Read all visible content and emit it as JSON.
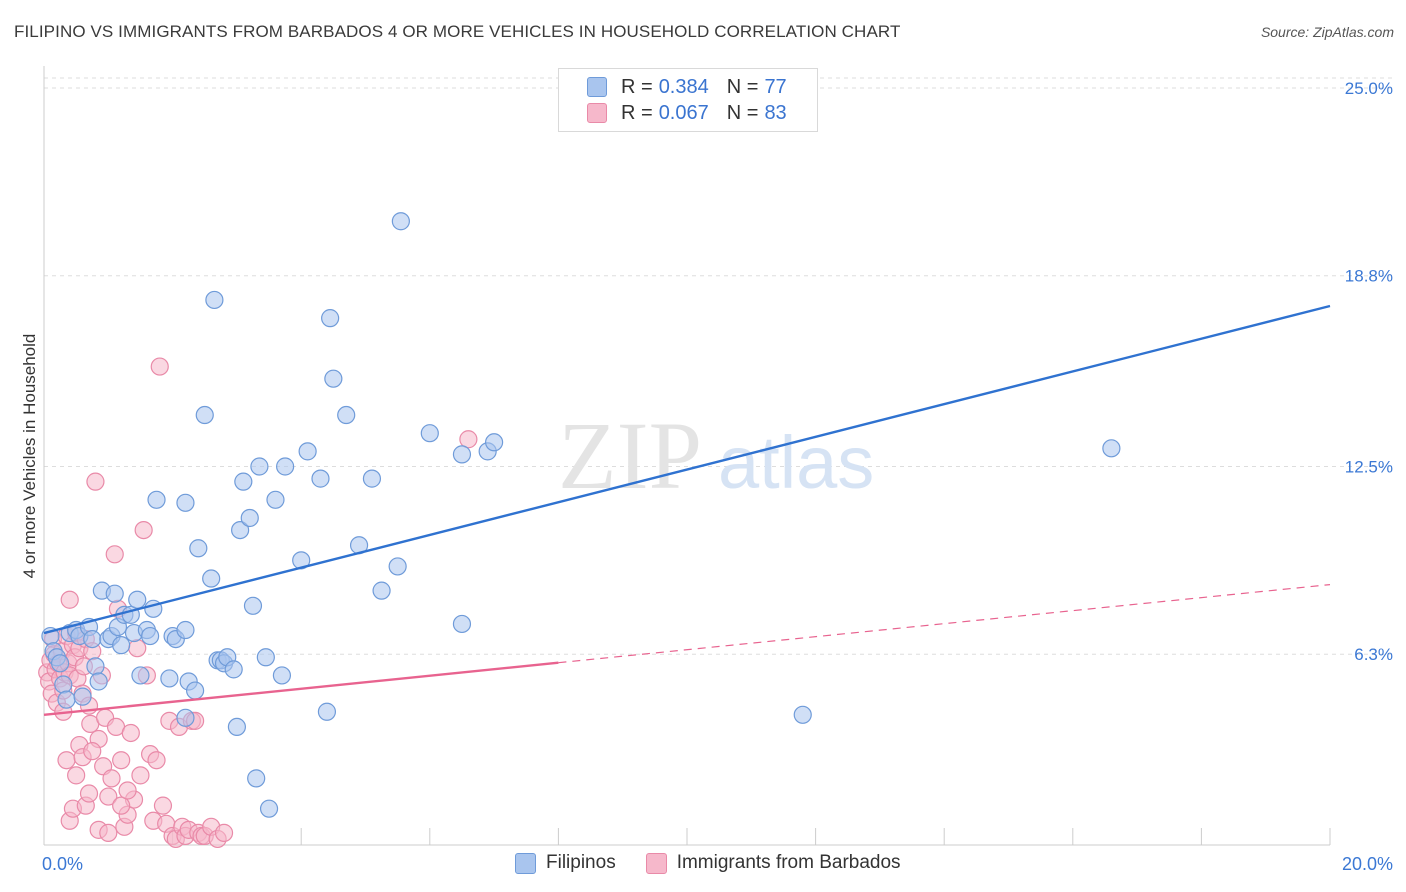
{
  "header": {
    "title": "FILIPINO VS IMMIGRANTS FROM BARBADOS 4 OR MORE VEHICLES IN HOUSEHOLD CORRELATION CHART",
    "source": "Source: ZipAtlas.com"
  },
  "legend": {
    "rows": [
      {
        "r_label": "R =",
        "r_value": "0.384",
        "n_label": "N =",
        "n_value": "77"
      },
      {
        "r_label": "R =",
        "r_value": "0.067",
        "n_label": "N =",
        "n_value": "83"
      }
    ]
  },
  "watermark": {
    "zip": "ZIP",
    "atlas": "atlas"
  },
  "colors": {
    "blue_fill": "#a9c5ee",
    "blue_stroke": "#6f9bd9",
    "blue_line": "#2f72d0",
    "pink_fill": "#f6b8cb",
    "pink_stroke": "#e98aa8",
    "pink_line": "#e8638f",
    "axis_text": "#3b78d4",
    "grid": "#dddddd"
  },
  "chart_data": {
    "type": "scatter",
    "title": "FILIPINO VS IMMIGRANTS FROM BARBADOS 4 OR MORE VEHICLES IN HOUSEHOLD CORRELATION CHART",
    "xlabel": "",
    "ylabel": "4 or more Vehicles in Household",
    "xlim": [
      0,
      20
    ],
    "ylim": [
      0,
      25.0
    ],
    "x_tick_labels": [
      "0.0%",
      "20.0%"
    ],
    "y_ticks": [
      6.3,
      12.5,
      18.8,
      25.0
    ],
    "y_tick_labels": [
      "6.3%",
      "12.5%",
      "18.8%",
      "25.0%"
    ],
    "grid": true,
    "series": [
      {
        "name": "Filipinos",
        "r": 0.384,
        "n": 77,
        "trend": {
          "x0": 0,
          "y0": 7.0,
          "x1": 20,
          "y1": 17.8,
          "dashed_from": null
        },
        "points": [
          [
            0.1,
            6.9
          ],
          [
            0.15,
            6.4
          ],
          [
            0.2,
            6.2
          ],
          [
            0.25,
            6.0
          ],
          [
            0.3,
            5.3
          ],
          [
            0.35,
            4.8
          ],
          [
            0.4,
            7.0
          ],
          [
            0.5,
            7.1
          ],
          [
            0.55,
            6.9
          ],
          [
            0.6,
            4.9
          ],
          [
            0.7,
            7.2
          ],
          [
            0.75,
            6.8
          ],
          [
            0.8,
            5.9
          ],
          [
            0.85,
            5.4
          ],
          [
            0.9,
            8.4
          ],
          [
            1.0,
            6.8
          ],
          [
            1.05,
            6.9
          ],
          [
            1.1,
            8.3
          ],
          [
            1.15,
            7.2
          ],
          [
            1.2,
            6.6
          ],
          [
            1.25,
            7.6
          ],
          [
            1.35,
            7.6
          ],
          [
            1.4,
            7.0
          ],
          [
            1.45,
            8.1
          ],
          [
            1.5,
            5.6
          ],
          [
            1.6,
            7.1
          ],
          [
            1.65,
            6.9
          ],
          [
            1.7,
            7.8
          ],
          [
            1.75,
            11.4
          ],
          [
            1.95,
            5.5
          ],
          [
            2.0,
            6.9
          ],
          [
            2.05,
            6.8
          ],
          [
            2.2,
            7.1
          ],
          [
            2.2,
            11.3
          ],
          [
            2.25,
            5.4
          ],
          [
            2.2,
            4.2
          ],
          [
            2.35,
            5.1
          ],
          [
            2.4,
            9.8
          ],
          [
            2.5,
            14.2
          ],
          [
            2.6,
            8.8
          ],
          [
            2.65,
            18.0
          ],
          [
            2.7,
            6.1
          ],
          [
            2.75,
            6.1
          ],
          [
            2.8,
            6.0
          ],
          [
            2.85,
            6.2
          ],
          [
            2.95,
            5.8
          ],
          [
            3.0,
            3.9
          ],
          [
            3.05,
            10.4
          ],
          [
            3.1,
            12.0
          ],
          [
            3.2,
            10.8
          ],
          [
            3.25,
            7.9
          ],
          [
            3.3,
            2.2
          ],
          [
            3.35,
            12.5
          ],
          [
            3.45,
            6.2
          ],
          [
            3.5,
            1.2
          ],
          [
            3.6,
            11.4
          ],
          [
            3.7,
            5.6
          ],
          [
            3.75,
            12.5
          ],
          [
            4.0,
            9.4
          ],
          [
            4.1,
            13.0
          ],
          [
            4.3,
            12.1
          ],
          [
            4.4,
            4.4
          ],
          [
            4.45,
            17.4
          ],
          [
            4.5,
            15.4
          ],
          [
            4.7,
            14.2
          ],
          [
            4.9,
            9.9
          ],
          [
            5.1,
            12.1
          ],
          [
            5.25,
            8.4
          ],
          [
            5.5,
            9.2
          ],
          [
            5.55,
            20.6
          ],
          [
            6.0,
            13.6
          ],
          [
            6.5,
            7.3
          ],
          [
            6.5,
            12.9
          ],
          [
            6.9,
            13.0
          ],
          [
            7.0,
            13.3
          ],
          [
            11.8,
            4.3
          ],
          [
            16.6,
            13.1
          ]
        ]
      },
      {
        "name": "Immigrants from Barbados",
        "r": 0.067,
        "n": 83,
        "trend": {
          "x0": 0,
          "y0": 4.3,
          "x1": 20,
          "y1": 8.6,
          "dashed_from": 8.0
        },
        "points": [
          [
            0.05,
            5.7
          ],
          [
            0.08,
            5.4
          ],
          [
            0.1,
            6.1
          ],
          [
            0.12,
            5.0
          ],
          [
            0.14,
            6.8
          ],
          [
            0.16,
            6.3
          ],
          [
            0.18,
            5.8
          ],
          [
            0.2,
            4.7
          ],
          [
            0.22,
            6.0
          ],
          [
            0.25,
            5.5
          ],
          [
            0.28,
            6.4
          ],
          [
            0.3,
            5.1
          ],
          [
            0.32,
            5.7
          ],
          [
            0.35,
            6.9
          ],
          [
            0.38,
            6.0
          ],
          [
            0.4,
            5.6
          ],
          [
            0.45,
            6.6
          ],
          [
            0.48,
            6.2
          ],
          [
            0.5,
            7.0
          ],
          [
            0.52,
            5.5
          ],
          [
            0.55,
            6.5
          ],
          [
            0.6,
            5.0
          ],
          [
            0.62,
            5.9
          ],
          [
            0.65,
            6.8
          ],
          [
            0.7,
            4.6
          ],
          [
            0.72,
            4.0
          ],
          [
            0.75,
            6.4
          ],
          [
            0.8,
            12.0
          ],
          [
            0.85,
            3.5
          ],
          [
            0.9,
            5.6
          ],
          [
            0.92,
            2.6
          ],
          [
            0.95,
            4.2
          ],
          [
            1.0,
            1.6
          ],
          [
            1.05,
            2.2
          ],
          [
            1.1,
            9.6
          ],
          [
            1.12,
            3.9
          ],
          [
            1.15,
            7.8
          ],
          [
            1.2,
            2.8
          ],
          [
            1.25,
            0.6
          ],
          [
            1.3,
            1.0
          ],
          [
            1.35,
            3.7
          ],
          [
            1.4,
            1.5
          ],
          [
            1.45,
            6.5
          ],
          [
            1.5,
            2.3
          ],
          [
            1.55,
            10.4
          ],
          [
            1.6,
            5.6
          ],
          [
            1.65,
            3.0
          ],
          [
            1.7,
            0.8
          ],
          [
            1.75,
            2.8
          ],
          [
            1.8,
            15.8
          ],
          [
            1.85,
            1.3
          ],
          [
            1.9,
            0.7
          ],
          [
            1.95,
            4.1
          ],
          [
            2.0,
            0.3
          ],
          [
            2.05,
            0.2
          ],
          [
            2.1,
            3.9
          ],
          [
            2.15,
            0.6
          ],
          [
            2.2,
            0.3
          ],
          [
            2.25,
            0.5
          ],
          [
            2.3,
            4.1
          ],
          [
            2.35,
            4.1
          ],
          [
            2.4,
            0.4
          ],
          [
            2.45,
            0.3
          ],
          [
            2.5,
            0.3
          ],
          [
            2.6,
            0.6
          ],
          [
            2.7,
            0.2
          ],
          [
            2.8,
            0.4
          ],
          [
            0.3,
            4.4
          ],
          [
            0.35,
            2.8
          ],
          [
            0.4,
            0.8
          ],
          [
            0.45,
            1.2
          ],
          [
            0.5,
            2.3
          ],
          [
            0.55,
            3.3
          ],
          [
            0.6,
            2.9
          ],
          [
            0.65,
            1.3
          ],
          [
            0.7,
            1.7
          ],
          [
            0.75,
            3.1
          ],
          [
            0.85,
            0.5
          ],
          [
            1.0,
            0.4
          ],
          [
            1.2,
            1.3
          ],
          [
            1.3,
            1.8
          ],
          [
            6.6,
            13.4
          ],
          [
            0.4,
            8.1
          ]
        ]
      }
    ]
  },
  "bottom_legend": {
    "items": [
      {
        "label": "Filipinos"
      },
      {
        "label": "Immigrants from Barbados"
      }
    ]
  }
}
